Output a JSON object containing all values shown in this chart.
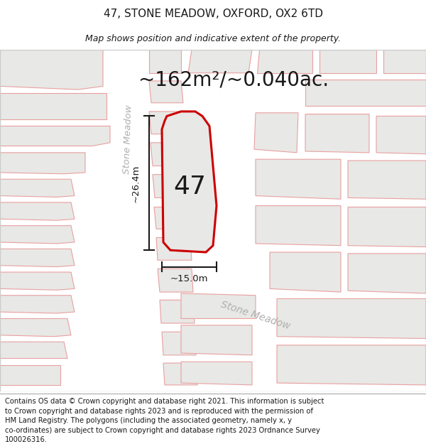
{
  "title": "47, STONE MEADOW, OXFORD, OX2 6TD",
  "subtitle": "Map shows position and indicative extent of the property.",
  "area_text": "~162m²/~0.040ac.",
  "property_number": "47",
  "dim_width": "~15.0m",
  "dim_height": "~26.4m",
  "footer": "Contains OS data © Crown copyright and database right 2021. This information is subject to Crown copyright and database rights 2023 and is reproduced with the permission of HM Land Registry. The polygons (including the associated geometry, namely x, y co-ordinates) are subject to Crown copyright and database rights 2023 Ordnance Survey 100026316.",
  "map_bg": "#f5f5f3",
  "road_bg": "#ffffff",
  "block_fill": "#e8e8e6",
  "building_outline": "#e8a0a0",
  "property_fill": "#e8e8e6",
  "property_outline": "#cc0000",
  "text_dark": "#1a1a1a",
  "text_street": "#b0b0b0",
  "dim_color": "#1a1a1a",
  "title_fs": 11,
  "subtitle_fs": 9,
  "area_fs": 20,
  "number_fs": 26,
  "footer_fs": 7.2,
  "street_fs": 9.5
}
